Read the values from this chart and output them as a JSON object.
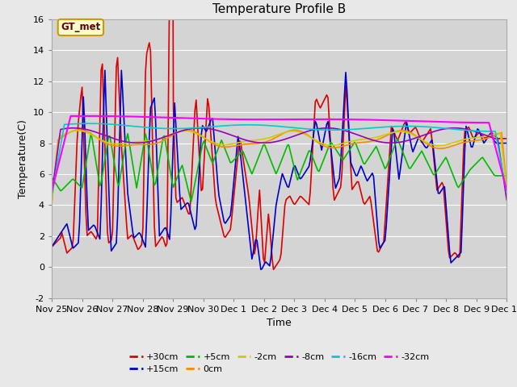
{
  "title": "Temperature Profile B",
  "xlabel": "Time",
  "ylabel": "Temperature(C)",
  "ylim": [
    -2,
    16
  ],
  "xlim": [
    0,
    15
  ],
  "xtick_labels": [
    "Nov 25",
    "Nov 26",
    "Nov 27",
    "Nov 28",
    "Nov 29",
    "Nov 30",
    "Dec 1",
    "Dec 2",
    "Dec 3",
    "Dec 4",
    "Dec 5",
    "Dec 6",
    "Dec 7",
    "Dec 8",
    "Dec 9",
    "Dec 10"
  ],
  "ytick_values": [
    -2,
    0,
    2,
    4,
    6,
    8,
    10,
    12,
    14,
    16
  ],
  "annotation_text": "GT_met",
  "background_color": "#e8e8e8",
  "plot_bg_color": "#d4d4d4",
  "title_fontsize": 11,
  "axis_fontsize": 9,
  "tick_fontsize": 8,
  "series_order": [
    "+30cm",
    "+15cm",
    "+5cm",
    "0cm",
    "-2cm",
    "-8cm",
    "-16cm",
    "-32cm"
  ],
  "series": {
    "+30cm": {
      "color": "#dd0000",
      "linewidth": 1.2
    },
    "+15cm": {
      "color": "#0000cc",
      "linewidth": 1.2
    },
    "+5cm": {
      "color": "#00bb00",
      "linewidth": 1.2
    },
    "0cm": {
      "color": "#ff8800",
      "linewidth": 1.2
    },
    "-2cm": {
      "color": "#cccc00",
      "linewidth": 1.2
    },
    "-8cm": {
      "color": "#9900bb",
      "linewidth": 1.2
    },
    "-16cm": {
      "color": "#00cccc",
      "linewidth": 1.2
    },
    "-32cm": {
      "color": "#ff00ff",
      "linewidth": 1.5
    }
  }
}
